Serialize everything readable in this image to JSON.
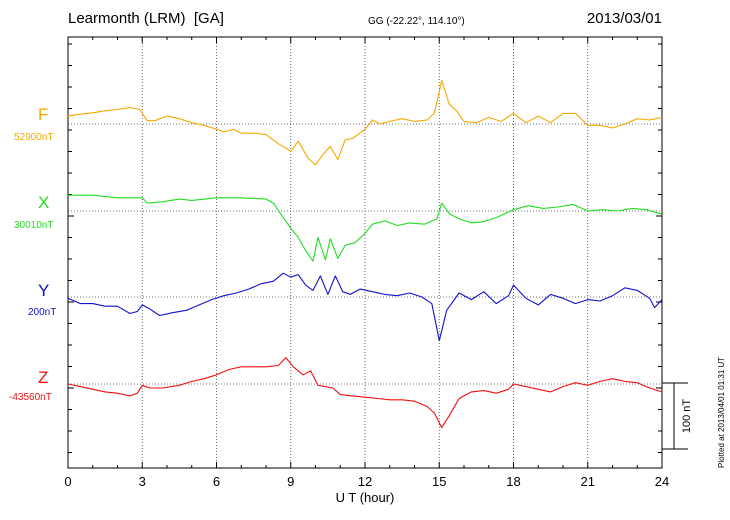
{
  "header": {
    "title": "Learmonth (LRM)  [GA]",
    "coords": "GG (-22.22°, 114.10°)",
    "date": "2013/03/01"
  },
  "chart_data": {
    "type": "line",
    "xlabel": "U T (hour)",
    "xlim": [
      0,
      24
    ],
    "xticks": [
      0,
      3,
      6,
      9,
      12,
      15,
      18,
      21,
      24
    ],
    "grid": true,
    "scale_bar": {
      "label": "100 nT",
      "value_nT": 100
    },
    "footnote": "Plotted at 2013/04/01 01:31  UT",
    "series": [
      {
        "name": "F",
        "baseline_label": "52900nT",
        "color": "#f5a800",
        "points": [
          [
            0,
            12
          ],
          [
            0.5,
            15
          ],
          [
            1,
            17
          ],
          [
            1.5,
            20
          ],
          [
            2,
            22
          ],
          [
            2.5,
            25
          ],
          [
            2.9,
            22
          ],
          [
            3.2,
            5
          ],
          [
            3.5,
            5
          ],
          [
            4,
            12
          ],
          [
            4.5,
            8
          ],
          [
            5,
            2
          ],
          [
            5.5,
            -2
          ],
          [
            6,
            -8
          ],
          [
            6.3,
            -12
          ],
          [
            6.7,
            -8
          ],
          [
            7,
            -14
          ],
          [
            7.5,
            -14
          ],
          [
            8,
            -16
          ],
          [
            8.5,
            -30
          ],
          [
            8.8,
            -36
          ],
          [
            9,
            -42
          ],
          [
            9.3,
            -26
          ],
          [
            9.7,
            -52
          ],
          [
            10,
            -62
          ],
          [
            10.3,
            -46
          ],
          [
            10.6,
            -34
          ],
          [
            10.9,
            -54
          ],
          [
            11.2,
            -24
          ],
          [
            11.5,
            -22
          ],
          [
            12,
            -8
          ],
          [
            12.3,
            6
          ],
          [
            12.6,
            0
          ],
          [
            13,
            4
          ],
          [
            13.5,
            8
          ],
          [
            14,
            4
          ],
          [
            14.5,
            6
          ],
          [
            14.8,
            16
          ],
          [
            15.1,
            66
          ],
          [
            15.4,
            30
          ],
          [
            15.7,
            20
          ],
          [
            16,
            4
          ],
          [
            16.5,
            2
          ],
          [
            17,
            10
          ],
          [
            17.5,
            4
          ],
          [
            18,
            16
          ],
          [
            18.5,
            2
          ],
          [
            19,
            12
          ],
          [
            19.5,
            2
          ],
          [
            20,
            16
          ],
          [
            20.5,
            16
          ],
          [
            21,
            -2
          ],
          [
            21.5,
            -2
          ],
          [
            22,
            -6
          ],
          [
            22.5,
            0
          ],
          [
            23,
            8
          ],
          [
            23.5,
            6
          ],
          [
            24,
            10
          ]
        ]
      },
      {
        "name": "X",
        "baseline_label": "30010nT",
        "color": "#22dd22",
        "points": [
          [
            0,
            24
          ],
          [
            1,
            24
          ],
          [
            2,
            20
          ],
          [
            3,
            20
          ],
          [
            3.2,
            12
          ],
          [
            3.8,
            14
          ],
          [
            4.5,
            18
          ],
          [
            5,
            16
          ],
          [
            6,
            20
          ],
          [
            7,
            20
          ],
          [
            8,
            18
          ],
          [
            8.3,
            12
          ],
          [
            8.6,
            -5
          ],
          [
            9,
            -26
          ],
          [
            9.3,
            -40
          ],
          [
            9.6,
            -60
          ],
          [
            9.9,
            -76
          ],
          [
            10.1,
            -40
          ],
          [
            10.4,
            -74
          ],
          [
            10.6,
            -42
          ],
          [
            10.9,
            -72
          ],
          [
            11.2,
            -52
          ],
          [
            11.6,
            -48
          ],
          [
            12,
            -34
          ],
          [
            12.3,
            -20
          ],
          [
            12.8,
            -15
          ],
          [
            13.3,
            -22
          ],
          [
            13.8,
            -18
          ],
          [
            14.4,
            -20
          ],
          [
            14.9,
            -12
          ],
          [
            15.1,
            12
          ],
          [
            15.4,
            -4
          ],
          [
            15.8,
            -12
          ],
          [
            16.3,
            -18
          ],
          [
            16.8,
            -16
          ],
          [
            17.3,
            -10
          ],
          [
            18,
            2
          ],
          [
            18.6,
            8
          ],
          [
            19.2,
            4
          ],
          [
            19.8,
            6
          ],
          [
            20.4,
            10
          ],
          [
            21,
            0
          ],
          [
            21.6,
            2
          ],
          [
            22.2,
            0
          ],
          [
            22.8,
            4
          ],
          [
            23.4,
            2
          ],
          [
            24,
            -5
          ]
        ]
      },
      {
        "name": "Y",
        "baseline_label": "200nT",
        "color": "#1111cc",
        "points": [
          [
            0,
            -2
          ],
          [
            0.5,
            -10
          ],
          [
            1,
            -10
          ],
          [
            1.5,
            -14
          ],
          [
            2,
            -14
          ],
          [
            2.5,
            -25
          ],
          [
            2.8,
            -22
          ],
          [
            3,
            -12
          ],
          [
            3.3,
            -18
          ],
          [
            3.7,
            -28
          ],
          [
            4.2,
            -24
          ],
          [
            4.8,
            -20
          ],
          [
            5.3,
            -12
          ],
          [
            5.8,
            -4
          ],
          [
            6.3,
            2
          ],
          [
            6.8,
            6
          ],
          [
            7.3,
            12
          ],
          [
            7.8,
            20
          ],
          [
            8.3,
            24
          ],
          [
            8.7,
            36
          ],
          [
            9,
            30
          ],
          [
            9.3,
            34
          ],
          [
            9.6,
            18
          ],
          [
            9.9,
            10
          ],
          [
            10.2,
            32
          ],
          [
            10.5,
            4
          ],
          [
            10.8,
            32
          ],
          [
            11.1,
            8
          ],
          [
            11.4,
            4
          ],
          [
            11.8,
            12
          ],
          [
            12.3,
            8
          ],
          [
            12.8,
            4
          ],
          [
            13.3,
            2
          ],
          [
            13.8,
            6
          ],
          [
            14.3,
            0
          ],
          [
            14.7,
            -10
          ],
          [
            15,
            -66
          ],
          [
            15.3,
            -20
          ],
          [
            15.8,
            6
          ],
          [
            16.3,
            -4
          ],
          [
            16.8,
            8
          ],
          [
            17.3,
            -10
          ],
          [
            17.8,
            2
          ],
          [
            18,
            18
          ],
          [
            18.5,
            -2
          ],
          [
            19,
            -12
          ],
          [
            19.5,
            4
          ],
          [
            20,
            -2
          ],
          [
            20.5,
            -10
          ],
          [
            21,
            -4
          ],
          [
            21.5,
            -6
          ],
          [
            22,
            2
          ],
          [
            22.5,
            14
          ],
          [
            23,
            10
          ],
          [
            23.5,
            -2
          ],
          [
            23.7,
            -16
          ],
          [
            24,
            -4
          ]
        ]
      },
      {
        "name": "Z",
        "baseline_label": "-43560nT",
        "color": "#ee1111",
        "points": [
          [
            0,
            0
          ],
          [
            0.5,
            -4
          ],
          [
            1,
            -8
          ],
          [
            1.5,
            -12
          ],
          [
            2,
            -14
          ],
          [
            2.5,
            -18
          ],
          [
            2.8,
            -14
          ],
          [
            3,
            -2
          ],
          [
            3.3,
            -6
          ],
          [
            3.8,
            -6
          ],
          [
            4.5,
            -2
          ],
          [
            5,
            4
          ],
          [
            5.5,
            8
          ],
          [
            6,
            14
          ],
          [
            6.5,
            22
          ],
          [
            7,
            26
          ],
          [
            7.5,
            26
          ],
          [
            8,
            26
          ],
          [
            8.5,
            28
          ],
          [
            8.8,
            40
          ],
          [
            9.1,
            26
          ],
          [
            9.5,
            14
          ],
          [
            9.8,
            20
          ],
          [
            10.1,
            -2
          ],
          [
            10.4,
            -4
          ],
          [
            10.7,
            -6
          ],
          [
            11,
            -16
          ],
          [
            11.5,
            -18
          ],
          [
            12,
            -20
          ],
          [
            12.5,
            -22
          ],
          [
            13,
            -24
          ],
          [
            13.5,
            -24
          ],
          [
            14,
            -26
          ],
          [
            14.5,
            -34
          ],
          [
            14.8,
            -44
          ],
          [
            15.1,
            -66
          ],
          [
            15.4,
            -48
          ],
          [
            15.8,
            -22
          ],
          [
            16.3,
            -12
          ],
          [
            16.8,
            -10
          ],
          [
            17.3,
            -14
          ],
          [
            17.8,
            -8
          ],
          [
            18,
            0
          ],
          [
            18.5,
            -4
          ],
          [
            19,
            -8
          ],
          [
            19.5,
            -12
          ],
          [
            20,
            -4
          ],
          [
            20.5,
            2
          ],
          [
            21,
            -2
          ],
          [
            21.5,
            4
          ],
          [
            22,
            8
          ],
          [
            22.5,
            4
          ],
          [
            23,
            2
          ],
          [
            23.5,
            -6
          ],
          [
            24,
            -12
          ]
        ]
      }
    ]
  }
}
